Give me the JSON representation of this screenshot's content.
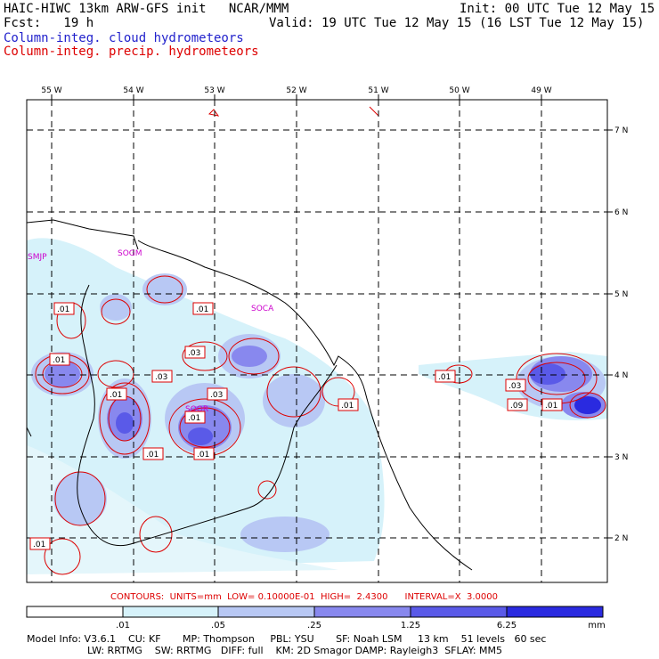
{
  "header": {
    "title_left": "HAIC-HIWC 13km ARW-GFS init   NCAR/MMM",
    "fcst": "Fcst:   19 h",
    "init": "Init: 00 UTC Tue 12 May 15",
    "valid": "Valid: 19 UTC Tue 12 May 15 (16 LST Tue 12 May 15)",
    "field1": "Column-integ. cloud hydrometeors",
    "field2": "Column-integ. precip. hydrometeors"
  },
  "map": {
    "lon_labels": [
      "55 W",
      "54 W",
      "53 W",
      "52 W",
      "51 W",
      "50 W",
      "49 W"
    ],
    "lat_labels": [
      "7 N",
      "6 N",
      "5 N",
      "4 N",
      "3 N",
      "2 N"
    ],
    "place_labels": [
      "SMJP",
      "SOGM",
      "SOCA",
      "SOOR"
    ],
    "contour_labels": [
      ".01",
      ".01",
      ".01",
      ".03",
      ".03",
      ".03",
      ".01",
      ".01",
      ".01",
      ".01",
      ".01",
      ".01",
      ".03",
      ".09",
      ".01",
      ".01"
    ]
  },
  "contours_line": {
    "text": "CONTOURS:  UNITS=mm  LOW= 0.10000E-01  HIGH=  2.4300      INTERVAL=X  3.0000"
  },
  "colorbar": {
    "ticks": [
      ".01",
      ".05",
      ".25",
      "1.25",
      "6.25"
    ],
    "unit": "mm",
    "colors": [
      "#ffffff",
      "#d6f2fa",
      "#b8c8f4",
      "#8888ee",
      "#5a5ae8",
      "#2a2ae0"
    ]
  },
  "model_info": {
    "line1": "Model Info: V3.6.1    CU: KF       MP: Thompson     PBL: YSU       SF: Noah LSM     13 km    51 levels   60 sec",
    "line2": "LW: RRTMG    SW: RRTMG   DIFF: full    KM: 2D Smagor DAMP: Rayleigh3  SFLAY: MM5"
  }
}
